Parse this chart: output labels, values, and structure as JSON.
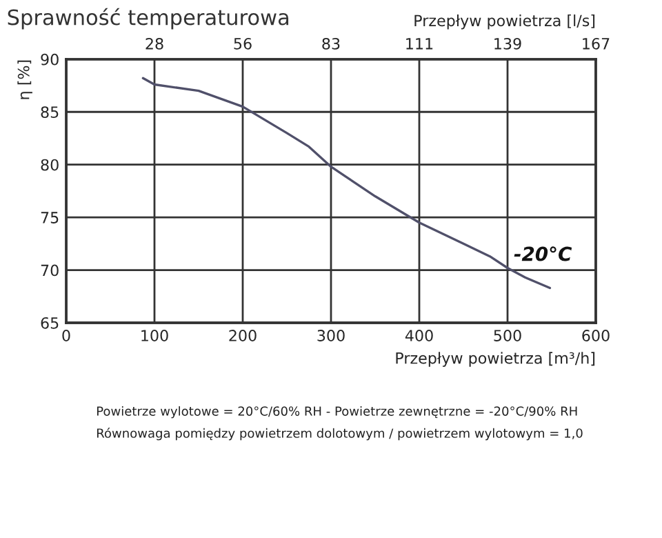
{
  "chart_data": {
    "type": "line",
    "title": "Sprawność temperaturowa",
    "xlabel": "Przepływ powietrza [m³/h]",
    "ylabel": "η [%]",
    "x2label": "Przepływ powietrza [l/s]",
    "x": [
      87,
      100,
      150,
      200,
      250,
      275,
      300,
      350,
      400,
      450,
      480,
      500,
      520,
      548
    ],
    "series": [
      {
        "name": "-20°C",
        "color": "#50506a",
        "values": [
          88.2,
          87.6,
          87.0,
          85.5,
          83.0,
          81.7,
          79.8,
          77.0,
          74.5,
          72.5,
          71.3,
          70.2,
          69.3,
          68.3
        ]
      }
    ],
    "xlim": [
      0,
      600
    ],
    "xticks": [
      0,
      100,
      200,
      300,
      400,
      500,
      600
    ],
    "ylim": [
      65,
      90
    ],
    "yticks": [
      65,
      70,
      75,
      80,
      85,
      90
    ],
    "x2lim": [
      0,
      166.67
    ],
    "x2ticks": [
      {
        "value": 27.78,
        "label": "28"
      },
      {
        "value": 55.56,
        "label": "56"
      },
      {
        "value": 83.33,
        "label": "83"
      },
      {
        "value": 111.11,
        "label": "111"
      },
      {
        "value": 138.89,
        "label": "139"
      },
      {
        "value": 166.67,
        "label": "167"
      }
    ],
    "grid": true,
    "annotations": [
      "Powietrze wylotowe = 20°C/60% RH - Powietrze zewnętrzne = -20°C/90% RH",
      "Równowaga pomiędzy powietrzem dolotowym / powietrzem wylotowym = 1,0"
    ]
  }
}
